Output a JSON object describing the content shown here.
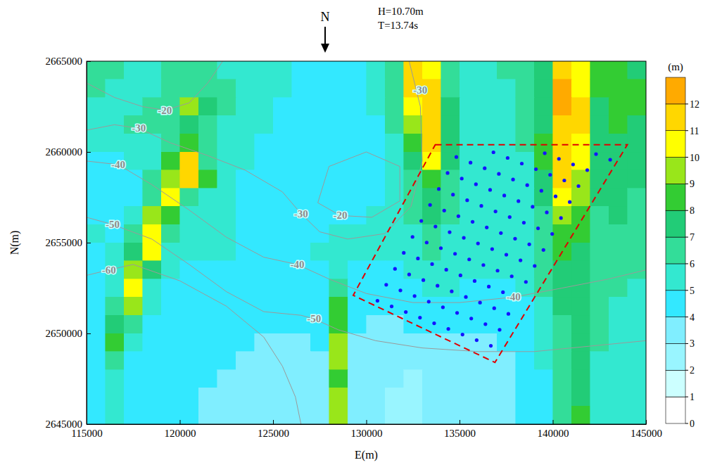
{
  "chart_data": {
    "type": "heatmap",
    "annotations": {
      "north": "N",
      "wave_height": "H=10.70m",
      "wave_period": "T=13.74s"
    },
    "x_label": "E(m)",
    "y_label": "N(m)",
    "xlim": [
      115000,
      145000
    ],
    "xticks": [
      115000,
      120000,
      125000,
      130000,
      135000,
      140000,
      145000
    ],
    "ylim": [
      2645000,
      2665000
    ],
    "yticks": [
      2645000,
      2650000,
      2655000,
      2660000,
      2665000
    ],
    "cells": {
      "x": [
        115500,
        116500,
        117500,
        118500,
        119500,
        120500,
        121500,
        122500,
        123500,
        124500,
        125500,
        126500,
        127500,
        128500,
        129500,
        130500,
        131500,
        132500,
        133500,
        134500,
        135500,
        136500,
        137500,
        138500,
        139500,
        140500,
        141500,
        142500,
        143500,
        144500
      ],
      "y": [
        2664500,
        2663500,
        2662500,
        2661500,
        2660500,
        2659500,
        2658500,
        2657500,
        2656500,
        2655500,
        2654500,
        2653500,
        2652500,
        2651500,
        2650500,
        2649500,
        2648500,
        2647500,
        2646500,
        2645500
      ],
      "z": [
        [
          6,
          6,
          5,
          5,
          6,
          6,
          6,
          5,
          5,
          5,
          5,
          4,
          4,
          4,
          4,
          5,
          6,
          11,
          10,
          6,
          5,
          5,
          6,
          6,
          7,
          11,
          10,
          8,
          8,
          7
        ],
        [
          6,
          5,
          5,
          5,
          6,
          6,
          6,
          6,
          5,
          5,
          5,
          4,
          4,
          4,
          4,
          5,
          6,
          11,
          11,
          6,
          5,
          5,
          5,
          6,
          7,
          12,
          10,
          8,
          8,
          8
        ],
        [
          5,
          5,
          5,
          6,
          6,
          9,
          7,
          6,
          5,
          5,
          4,
          4,
          4,
          4,
          4,
          5,
          6,
          10,
          11,
          7,
          5,
          5,
          5,
          6,
          7,
          12,
          11,
          7,
          8,
          8
        ],
        [
          5,
          5,
          6,
          6,
          6,
          7,
          6,
          5,
          5,
          5,
          4,
          4,
          4,
          4,
          4,
          4,
          6,
          9,
          11,
          7,
          5,
          5,
          5,
          6,
          7,
          11,
          11,
          7,
          8,
          7
        ],
        [
          5,
          5,
          5,
          5,
          6,
          8,
          6,
          5,
          5,
          4,
          4,
          4,
          4,
          4,
          4,
          4,
          5,
          8,
          11,
          7,
          5,
          5,
          5,
          6,
          8,
          11,
          10,
          7,
          7,
          7
        ],
        [
          4,
          4,
          5,
          5,
          8,
          11,
          6,
          5,
          5,
          4,
          4,
          4,
          4,
          4,
          4,
          4,
          5,
          7,
          10,
          7,
          5,
          5,
          5,
          5,
          8,
          11,
          10,
          7,
          7,
          7
        ],
        [
          4,
          4,
          4,
          6,
          9,
          11,
          8,
          5,
          4,
          4,
          4,
          4,
          4,
          4,
          4,
          4,
          5,
          6,
          8,
          6,
          5,
          5,
          5,
          5,
          7,
          11,
          9,
          7,
          7,
          7
        ],
        [
          4,
          4,
          4,
          6,
          10,
          6,
          5,
          5,
          4,
          4,
          4,
          4,
          4,
          4,
          4,
          4,
          5,
          6,
          7,
          6,
          5,
          5,
          5,
          5,
          7,
          10,
          9,
          7,
          7,
          6
        ],
        [
          4,
          4,
          5,
          9,
          8,
          5,
          5,
          5,
          4,
          4,
          4,
          4,
          4,
          4,
          4,
          5,
          5,
          6,
          7,
          6,
          5,
          5,
          5,
          5,
          6,
          9,
          8,
          6,
          7,
          6
        ],
        [
          5,
          4,
          6,
          10,
          6,
          5,
          5,
          5,
          4,
          4,
          4,
          4,
          4,
          5,
          5,
          5,
          5,
          5,
          6,
          5,
          5,
          5,
          5,
          5,
          6,
          8,
          8,
          6,
          6,
          6
        ],
        [
          4,
          5,
          7,
          10,
          5,
          5,
          5,
          5,
          4,
          4,
          4,
          4,
          5,
          5,
          5,
          5,
          5,
          5,
          6,
          5,
          5,
          5,
          5,
          5,
          6,
          8,
          7,
          6,
          6,
          6
        ],
        [
          4,
          5,
          9,
          7,
          5,
          4,
          4,
          4,
          4,
          4,
          4,
          4,
          4,
          5,
          4,
          4,
          4,
          5,
          5,
          5,
          5,
          5,
          5,
          5,
          6,
          7,
          7,
          6,
          6,
          6
        ],
        [
          4,
          5,
          10,
          5,
          4,
          4,
          4,
          4,
          4,
          4,
          4,
          4,
          4,
          6,
          4,
          4,
          4,
          4,
          5,
          5,
          4,
          4,
          4,
          5,
          6,
          7,
          7,
          6,
          6,
          5
        ],
        [
          4,
          6,
          9,
          5,
          4,
          4,
          4,
          4,
          4,
          4,
          4,
          4,
          4,
          8,
          4,
          4,
          4,
          4,
          4,
          4,
          4,
          4,
          4,
          4,
          5,
          7,
          7,
          6,
          5,
          5
        ],
        [
          4,
          7,
          6,
          4,
          4,
          4,
          4,
          4,
          4,
          4,
          4,
          4,
          4,
          8,
          4,
          3,
          3,
          4,
          4,
          4,
          4,
          4,
          4,
          4,
          5,
          6,
          7,
          6,
          5,
          5
        ],
        [
          4,
          8,
          5,
          4,
          4,
          4,
          4,
          4,
          4,
          3,
          3,
          3,
          4,
          9,
          3,
          3,
          3,
          3,
          3,
          3,
          3,
          3,
          4,
          4,
          5,
          6,
          7,
          6,
          5,
          5
        ],
        [
          4,
          6,
          4,
          4,
          4,
          4,
          4,
          4,
          3,
          3,
          3,
          3,
          3,
          9,
          3,
          3,
          3,
          3,
          3,
          3,
          3,
          3,
          3,
          4,
          5,
          6,
          7,
          5,
          5,
          5
        ],
        [
          4,
          5,
          4,
          4,
          4,
          4,
          4,
          3,
          3,
          3,
          3,
          3,
          3,
          8,
          3,
          3,
          3,
          2,
          3,
          3,
          3,
          3,
          3,
          4,
          4,
          6,
          7,
          5,
          5,
          5
        ],
        [
          4,
          5,
          4,
          4,
          4,
          4,
          3,
          3,
          3,
          3,
          3,
          3,
          3,
          9,
          3,
          3,
          2,
          2,
          3,
          3,
          3,
          3,
          3,
          4,
          4,
          6,
          7,
          5,
          5,
          5
        ],
        [
          4,
          5,
          4,
          4,
          4,
          4,
          3,
          3,
          3,
          3,
          3,
          3,
          3,
          9,
          3,
          3,
          2,
          2,
          3,
          3,
          3,
          3,
          3,
          4,
          4,
          6,
          8,
          5,
          5,
          5
        ]
      ]
    },
    "colorbar": {
      "label": "(m)",
      "levels": [
        0,
        1,
        2,
        3,
        4,
        5,
        6,
        7,
        8,
        9,
        10,
        11,
        12,
        13
      ],
      "colors": [
        "#ffffff",
        "#ccffff",
        "#99f5ff",
        "#80eeff",
        "#33e8ff",
        "#33e8d0",
        "#33dd99",
        "#22cc77",
        "#33cc33",
        "#99e61a",
        "#ffff00",
        "#ffd700",
        "#ffaa00"
      ],
      "ticks": [
        0,
        1,
        2,
        3,
        4,
        5,
        6,
        7,
        8,
        9,
        10,
        11,
        12
      ]
    },
    "depth_contours": [
      {
        "depth": -20,
        "x": [
          115000,
          116500,
          118000,
          119200,
          120500,
          121500,
          122300
        ],
        "y": [
          2663800,
          2663000,
          2662500,
          2662300,
          2662700,
          2663800,
          2665000
        ],
        "label_at": [
          [
            119200,
            2662300
          ]
        ]
      },
      {
        "depth": -20,
        "x": [
          127400,
          128600,
          130300,
          131800,
          131800,
          130000,
          128000,
          127400
        ],
        "y": [
          2657200,
          2656500,
          2656400,
          2657300,
          2659200,
          2660000,
          2659200,
          2657200
        ],
        "label_at": [
          [
            128600,
            2656500
          ]
        ]
      },
      {
        "depth": -30,
        "x": [
          115000,
          116500,
          117800,
          119500,
          121500,
          123500,
          125500,
          126500,
          127500,
          129000,
          131000,
          132400,
          133000,
          132900,
          132300
        ],
        "y": [
          2661200,
          2661500,
          2661300,
          2660500,
          2659800,
          2659000,
          2657800,
          2656600,
          2655600,
          2655200,
          2655500,
          2657000,
          2659500,
          2662500,
          2665000
        ],
        "label_at": [
          [
            117800,
            2661300
          ],
          [
            126500,
            2656600
          ],
          [
            132900,
            2663400
          ]
        ]
      },
      {
        "depth": -40,
        "x": [
          115000,
          116700,
          118500,
          120500,
          122500,
          124500,
          126300,
          128000,
          130000,
          132500,
          135000,
          137900,
          140500,
          143000,
          145000
        ],
        "y": [
          2659500,
          2659300,
          2658200,
          2656800,
          2655300,
          2654200,
          2653800,
          2653000,
          2652200,
          2651700,
          2651700,
          2652000,
          2652500,
          2653000,
          2653500
        ],
        "label_at": [
          [
            116700,
            2659300
          ],
          [
            126300,
            2653800
          ],
          [
            137900,
            2652000
          ]
        ]
      },
      {
        "depth": -50,
        "x": [
          115000,
          116400,
          118500,
          120500,
          122500,
          124500,
          126500,
          127200,
          128500,
          130500,
          133000,
          136000,
          139000,
          142000,
          145000
        ],
        "y": [
          2656400,
          2656000,
          2655200,
          2653800,
          2652300,
          2651200,
          2651000,
          2650800,
          2650200,
          2649600,
          2649200,
          2649000,
          2649000,
          2649300,
          2649600
        ],
        "label_at": [
          [
            116400,
            2656000
          ],
          [
            127200,
            2650800
          ]
        ]
      },
      {
        "depth": -60,
        "x": [
          115000,
          116200,
          117500,
          120000,
          122500,
          124500,
          125500,
          126200,
          126500
        ],
        "y": [
          2653200,
          2653500,
          2653800,
          2652900,
          2651500,
          2649800,
          2648200,
          2646500,
          2645000
        ],
        "label_at": [
          [
            116200,
            2653500
          ]
        ]
      }
    ],
    "boundary": {
      "x": [
        133700,
        144000,
        136900,
        129300
      ],
      "y": [
        2660400,
        2660400,
        2648400,
        2652100
      ],
      "color": "#e00000",
      "line_style": "dashed"
    },
    "points": {
      "color": "#1414ff",
      "marker": "circle",
      "x": [
        130600,
        131360,
        132120,
        132880,
        133640,
        134400,
        135160,
        135920,
        136680,
        131070,
        131830,
        132590,
        133350,
        134110,
        134870,
        135630,
        136390,
        137150,
        131540,
        132300,
        133060,
        133820,
        134580,
        135340,
        136100,
        136860,
        137620,
        132010,
        132770,
        133530,
        134290,
        135050,
        135810,
        136570,
        137330,
        138090,
        132480,
        133240,
        134000,
        134760,
        135520,
        136280,
        137040,
        137800,
        138560,
        132950,
        133710,
        134470,
        135230,
        135990,
        136750,
        137510,
        138270,
        139030,
        133420,
        134180,
        134940,
        135700,
        136460,
        137220,
        137980,
        138740,
        139500,
        133890,
        134650,
        135410,
        136170,
        136930,
        137690,
        138450,
        139210,
        139970,
        134360,
        135120,
        135880,
        136640,
        137400,
        138160,
        138920,
        139680,
        140440,
        134830,
        135590,
        136350,
        137110,
        137870,
        138630,
        139390,
        140150,
        140910,
        136820,
        137580,
        138340,
        139100,
        139860,
        140620,
        141380,
        139570,
        140330,
        141090,
        141850,
        142320,
        143080
      ],
      "y": [
        2651800,
        2651490,
        2651180,
        2650870,
        2650560,
        2650250,
        2649940,
        2649630,
        2649320,
        2652680,
        2652370,
        2652060,
        2651750,
        2651440,
        2651130,
        2650820,
        2650510,
        2650200,
        2653560,
        2653250,
        2652940,
        2652630,
        2652320,
        2652010,
        2651700,
        2651390,
        2651080,
        2654440,
        2654130,
        2653820,
        2653510,
        2653200,
        2652890,
        2652580,
        2652270,
        2651960,
        2655320,
        2655010,
        2654700,
        2654390,
        2654080,
        2653770,
        2653460,
        2653150,
        2652840,
        2656200,
        2655890,
        2655580,
        2655270,
        2654960,
        2654650,
        2654340,
        2654030,
        2653720,
        2657080,
        2656770,
        2656460,
        2656150,
        2655840,
        2655530,
        2655220,
        2654910,
        2654600,
        2657960,
        2657650,
        2657340,
        2657030,
        2656720,
        2656410,
        2656100,
        2655790,
        2655480,
        2658840,
        2658530,
        2658220,
        2657910,
        2657600,
        2657290,
        2656980,
        2656670,
        2656360,
        2659720,
        2659410,
        2659100,
        2658790,
        2658480,
        2658170,
        2657860,
        2657550,
        2657240,
        2659980,
        2659670,
        2659360,
        2659050,
        2658740,
        2658430,
        2658120,
        2659930,
        2659620,
        2659310,
        2659000,
        2659880,
        2659570
      ]
    }
  }
}
